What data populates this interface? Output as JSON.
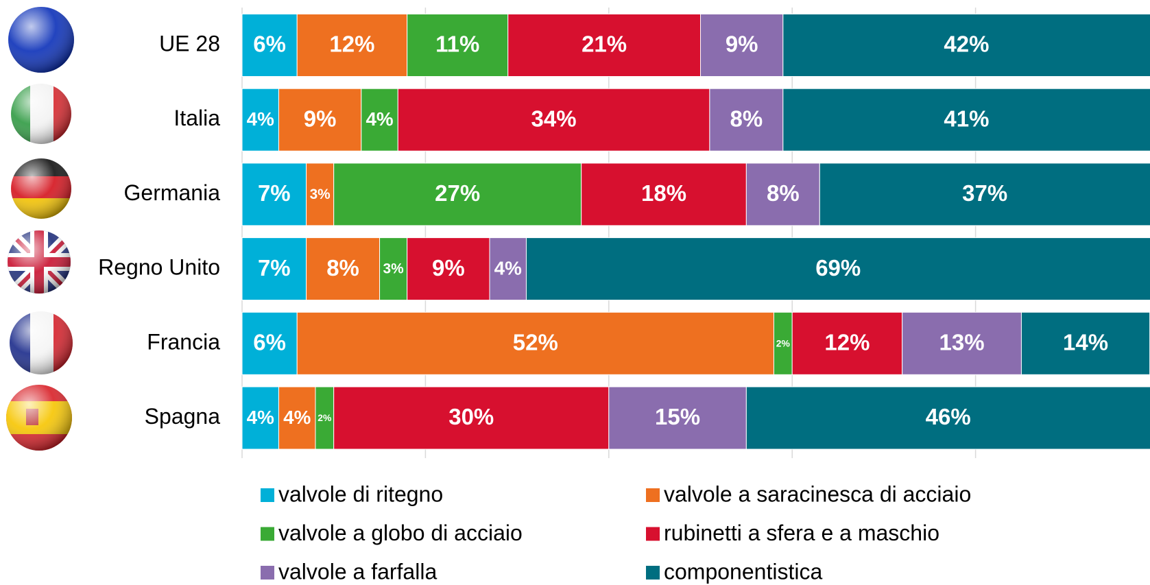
{
  "chart_data": {
    "type": "stacked-barh",
    "categories": [
      "UE 28",
      "Italia",
      "Germania",
      "Regno Unito",
      "Francia",
      "Spagna"
    ],
    "xlim": [
      0,
      100
    ],
    "xticks": [
      0,
      20,
      40,
      60,
      80,
      100
    ],
    "grid": true,
    "legend": "bottom",
    "series": [
      {
        "name": "valvole di ritegno",
        "color": "#00b0d8",
        "values": [
          6,
          4,
          7,
          7,
          6,
          4
        ],
        "value_labels": [
          "6%",
          "4%",
          "7%",
          "7%",
          "6%",
          "4%"
        ]
      },
      {
        "name": "valvole a saracinesca di acciaio",
        "color": "#ee7020",
        "values": [
          12,
          9,
          3,
          8,
          52,
          4
        ],
        "value_labels": [
          "12%",
          "9%",
          "3%",
          "8%",
          "52%",
          "4%"
        ]
      },
      {
        "name": "valvole a globo di acciaio",
        "color": "#3aaa35",
        "values": [
          11,
          4,
          27,
          3,
          2,
          2
        ],
        "value_labels": [
          "11%",
          "4%",
          "27%",
          "3%",
          "2%",
          "2%"
        ]
      },
      {
        "name": "rubinetti a sfera e a maschio",
        "color": "#d7102f",
        "values": [
          21,
          34,
          18,
          9,
          12,
          30
        ],
        "value_labels": [
          "21%",
          "34%",
          "18%",
          "9%",
          "12%",
          "30%"
        ]
      },
      {
        "name": "valvole a farfalla",
        "color": "#8a6dae",
        "values": [
          9,
          8,
          8,
          4,
          13,
          15
        ],
        "value_labels": [
          "9%",
          "8%",
          "8%",
          "4%",
          "13%",
          "15%"
        ]
      },
      {
        "name": "componentistica",
        "color": "#006e80",
        "values": [
          42,
          41,
          37,
          69,
          14,
          46
        ],
        "value_labels": [
          "42%",
          "41%",
          "37%",
          "69%",
          "14%",
          "46%"
        ]
      }
    ]
  }
}
